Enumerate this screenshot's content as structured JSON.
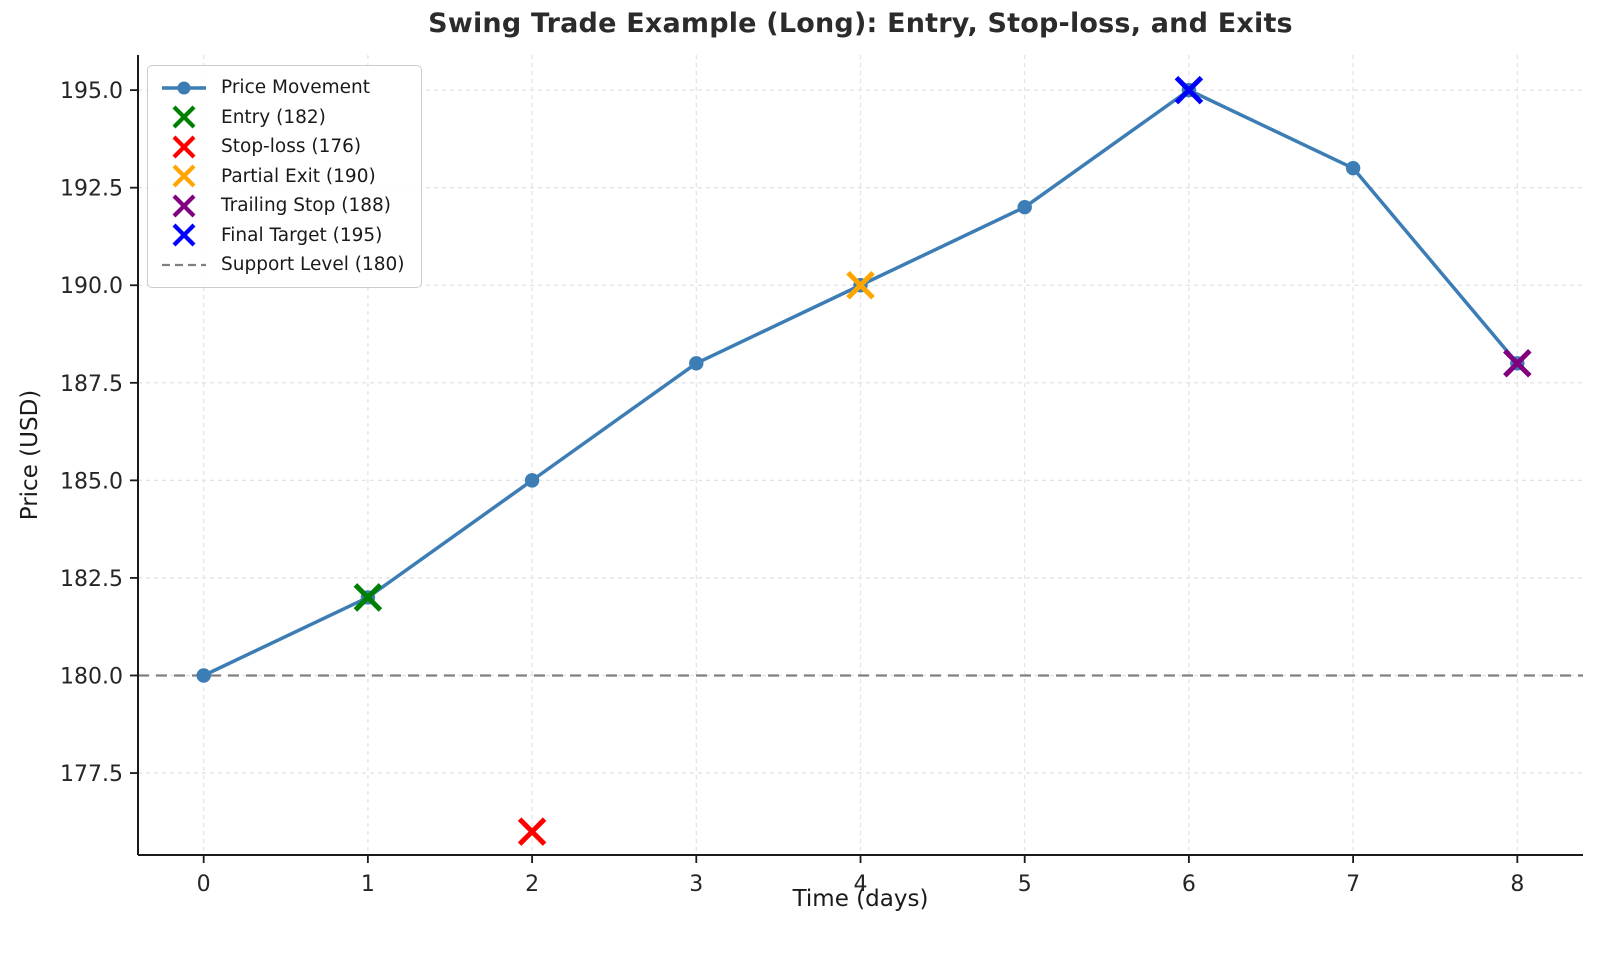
{
  "chart_data": {
    "type": "line",
    "title": "Swing Trade Example (Long): Entry, Stop-loss, and Exits",
    "xlabel": "Time (days)",
    "ylabel": "Price (USD)",
    "x": [
      0,
      1,
      2,
      3,
      4,
      5,
      6,
      7,
      8
    ],
    "xticks": [
      0,
      1,
      2,
      3,
      4,
      5,
      6,
      7,
      8
    ],
    "yticks": [
      177.5,
      180.0,
      182.5,
      185.0,
      187.5,
      190.0,
      192.5,
      195.0
    ],
    "xlim": [
      -0.4,
      8.4
    ],
    "ylim": [
      175.4,
      195.9
    ],
    "grid": true,
    "legend_position": "upper-left",
    "series": [
      {
        "name": "Price Movement",
        "color": "#3c7db5",
        "marker": "circle",
        "values": [
          180,
          182,
          185,
          188,
          190,
          192,
          195,
          193,
          188
        ]
      }
    ],
    "markers": [
      {
        "name": "Entry (182)",
        "x": 1,
        "y": 182,
        "color": "#008000"
      },
      {
        "name": "Stop-loss (176)",
        "x": 2,
        "y": 176,
        "color": "#ff0000"
      },
      {
        "name": "Partial Exit (190)",
        "x": 4,
        "y": 190,
        "color": "#ffa500"
      },
      {
        "name": "Trailing Stop (188)",
        "x": 8,
        "y": 188,
        "color": "#800080"
      },
      {
        "name": "Final Target (195)",
        "x": 6,
        "y": 195,
        "color": "#0000ff"
      }
    ],
    "reference_lines": [
      {
        "name": "Support Level (180)",
        "y": 180,
        "color": "#808080",
        "style": "dashed"
      }
    ],
    "legend": [
      {
        "label": "Price Movement",
        "swatch": "line-circle",
        "color": "#3c7db5"
      },
      {
        "label": "Entry (182)",
        "swatch": "x",
        "color": "#008000"
      },
      {
        "label": "Stop-loss (176)",
        "swatch": "x",
        "color": "#ff0000"
      },
      {
        "label": "Partial Exit (190)",
        "swatch": "x",
        "color": "#ffa500"
      },
      {
        "label": "Trailing Stop (188)",
        "swatch": "x",
        "color": "#800080"
      },
      {
        "label": "Final Target (195)",
        "swatch": "x",
        "color": "#0000ff"
      },
      {
        "label": "Support Level (180)",
        "swatch": "dash",
        "color": "#808080"
      }
    ]
  }
}
